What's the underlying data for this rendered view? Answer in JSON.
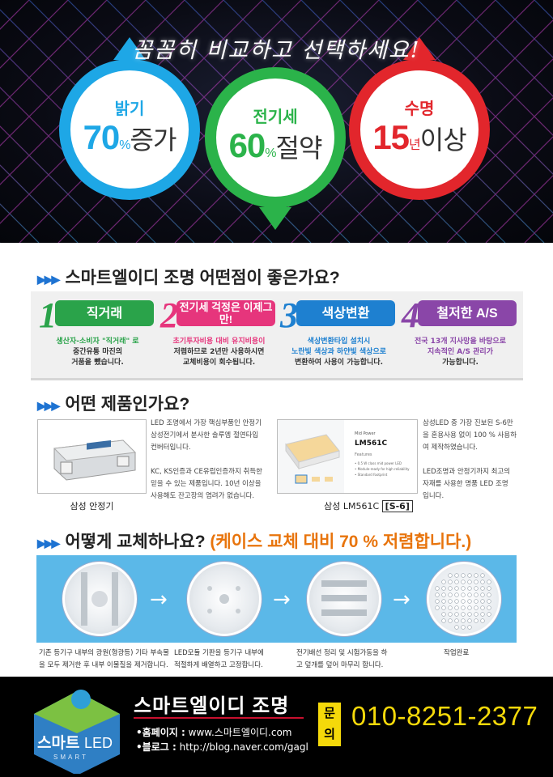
{
  "hero": {
    "title": "꼼꼼히 비교하고 선택하세요!",
    "circles": [
      {
        "label": "밝기",
        "value": "70",
        "unit": "%",
        "word": "증가",
        "color": "#1ea7e6"
      },
      {
        "label": "전기세",
        "value": "60",
        "unit": "%",
        "word": "절약",
        "color": "#2bb34a"
      },
      {
        "label": "수명",
        "value": "15",
        "unit": "년",
        "word": "이상",
        "color": "#e2262c"
      }
    ]
  },
  "features": {
    "title": "스마트엘이디 조명 어떤점이 좋은가요?",
    "items": [
      {
        "num": "1",
        "label": "직거래",
        "color": "#2aa34a",
        "desc1": "생산자-소비자 \"직거래\" 로",
        "desc2": "중간유통 마진의",
        "desc3": "거품을 뺐습니다."
      },
      {
        "num": "2",
        "label": "전기세 걱정은 이제그만!",
        "color": "#e6357c",
        "desc1": "초기투자비용 대비 유지비용이",
        "desc2": "저렴하므로 2년만 사용하시면",
        "desc3": "교체비용이 회수됩니다."
      },
      {
        "num": "3",
        "label": "색상변환",
        "color": "#1e80d0",
        "desc1": "색상변환타입 설치시",
        "desc2": "노란빛 색상과 하얀빛 색상으로",
        "desc3": "변환하여 사용이 가능합니다."
      },
      {
        "num": "4",
        "label": "철저한 A/S",
        "color": "#8a46a8",
        "desc1": "전국 13개 지사망을 바탕으로",
        "desc2": "지속적인 A/S 관리가",
        "desc3": "가능합니다."
      }
    ]
  },
  "products": {
    "title": "어떤 제품인가요?",
    "ballast": {
      "caption": "삼성 안정기",
      "text1": "LED 조명에서 가장 핵심부품인 안정기",
      "text2": "삼성전기에서 분사한 솔루엠 절연타입",
      "text3": "컨버터입니다.",
      "text4": "KC, KS인증과 CE유럽인증까지 취득한",
      "text5": "믿을 수 있는 제품입니다. 10년 이상을",
      "text6": "사용해도 잔고장의 염려가 없습니다."
    },
    "chip": {
      "caption": "삼성 LM561C",
      "caption_tag": "[S-6]",
      "brand": "Mid Power",
      "model": "LM561C",
      "features_label": "Features",
      "bullet1": "• 0.5 W class mid power LED",
      "bullet2": "• Module-ready for high reliability",
      "bullet3": "• Standard footprint",
      "text1": "삼성LED 중 가장 진보된 S-6만",
      "text2": "을 혼용사용 없이 100 % 사용하",
      "text3": "여 제작하였습니다.",
      "text4": "LED조명과 안정기까지 최고의",
      "text5": "자재를 사용한 명품 LED 조명",
      "text6": "입니다."
    }
  },
  "replace": {
    "title": "어떻게 교체하나요?",
    "subtitle": "(케이스 교체 대비 70 % 저렴합니다.)",
    "steps": [
      {
        "line1": "기존 등기구 내부의 광원(형광등) 기타 부속물",
        "line2": "을 모두 제거한 후 내부 이물질을 제거합니다."
      },
      {
        "line1": "LED모듈 기판을 등기구 내부에",
        "line2": "적절하게 배열하고 고정합니다."
      },
      {
        "line1": "전기배선 정리 및 시험가동을 하",
        "line2": "고 덮개를 덮어 마무리 합니다."
      },
      {
        "line1": "작업완료",
        "line2": ""
      }
    ]
  },
  "footer": {
    "logo_text": "스마트",
    "logo_led": "LED",
    "logo_sub": "SMART",
    "brand": "스마트엘이디 조명",
    "homepage_label": "•홈페이지 :",
    "homepage": "www.스마트엘이디.com",
    "blog_label": "•블로그 :",
    "blog": "http://blog.naver.com/gagl",
    "inquiry_1": "문",
    "inquiry_2": "의",
    "phone": "010-8251-2377"
  }
}
